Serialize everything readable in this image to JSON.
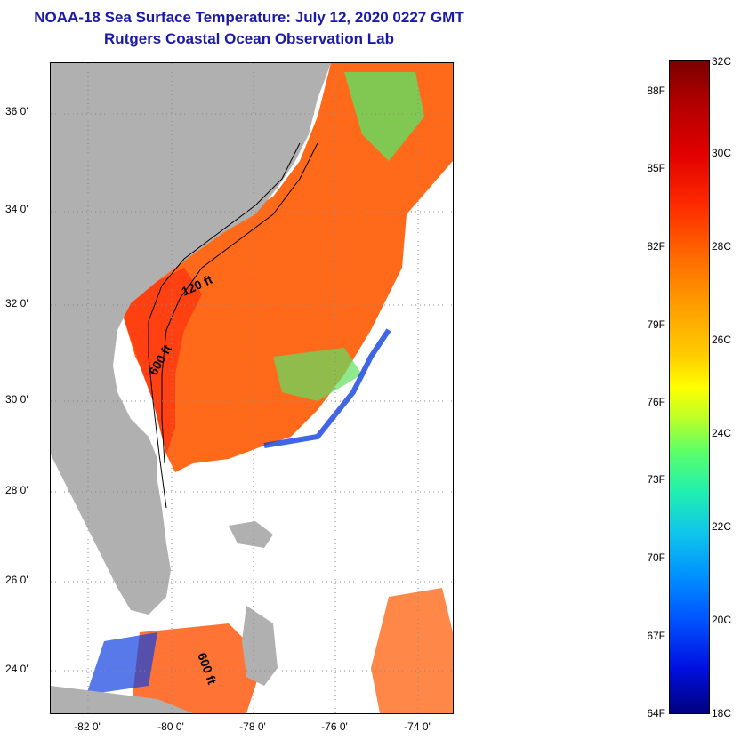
{
  "title": {
    "line1": "NOAA-18 Sea Surface Temperature:  July 12, 2020 0227 GMT",
    "line2": "Rutgers Coastal Ocean Observation Lab"
  },
  "map": {
    "lat_labels": [
      "36 0'",
      "34 0'",
      "32 0'",
      "30 0'",
      "28 0'",
      "26 0'",
      "24 0'"
    ],
    "lon_labels": [
      "-82 0'",
      "-80 0'",
      "-78 0'",
      "-76 0'",
      "-74 0'"
    ],
    "contour_labels": {
      "shelf_120": "120 ft",
      "shelf_600": "600 ft",
      "bahamas_600": "600 ft"
    },
    "colors": {
      "land": "#b0b0b0",
      "warm": "#ff6a1a",
      "hot": "#ff4010",
      "green": "#60e060",
      "blue": "#1040e0"
    }
  },
  "colorbar": {
    "fahrenheit": [
      "88F",
      "85F",
      "82F",
      "79F",
      "76F",
      "73F",
      "70F",
      "67F",
      "64F"
    ],
    "celsius": [
      "32C",
      "30C",
      "28C",
      "26C",
      "24C",
      "22C",
      "20C",
      "18C"
    ]
  }
}
